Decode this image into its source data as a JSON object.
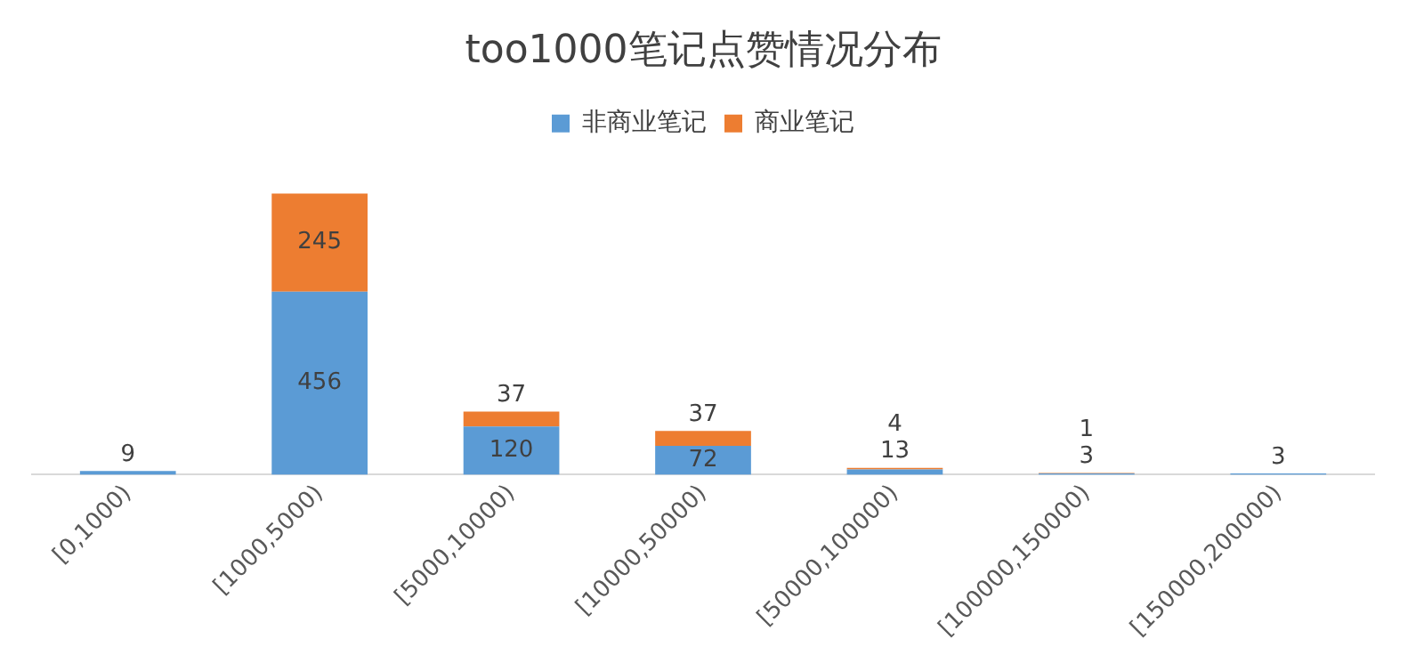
{
  "chart_data": {
    "type": "bar",
    "title": "too1000笔记点赞情况分布",
    "categories": [
      "[0,1000)",
      "[1000,5000)",
      "[5000,10000)",
      "[10000,50000)",
      "[50000,100000)",
      "[100000,150000)",
      "[150000,200000)"
    ],
    "stacked": true,
    "data_labels": true,
    "legend": "top",
    "grid": false,
    "series": [
      {
        "name": "非商业笔记",
        "color": "#5b9bd5",
        "values": [
          9,
          456,
          120,
          72,
          13,
          3,
          3
        ]
      },
      {
        "name": "商业笔记",
        "color": "#ed7d31",
        "values": [
          null,
          245,
          37,
          37,
          4,
          1,
          null
        ]
      }
    ]
  }
}
